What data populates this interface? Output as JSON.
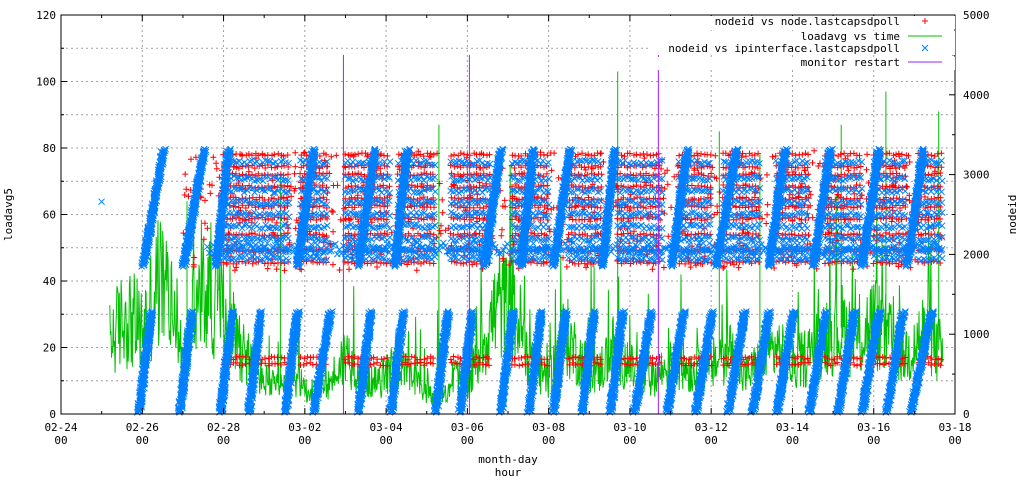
{
  "chart_data": {
    "type": "scatter",
    "title": "",
    "xlabel_lines": [
      "month-day",
      "hour"
    ],
    "ylabel": "loadavg5",
    "y2label": "nodeid",
    "ylim": [
      0,
      120
    ],
    "y2lim": [
      0,
      5000
    ],
    "x_ticks": [
      {
        "day": 0,
        "line1": "02-24",
        "line2": "00"
      },
      {
        "day": 2,
        "line1": "02-26",
        "line2": "00"
      },
      {
        "day": 4,
        "line1": "02-28",
        "line2": "00"
      },
      {
        "day": 6,
        "line1": "03-02",
        "line2": "00"
      },
      {
        "day": 8,
        "line1": "03-04",
        "line2": "00"
      },
      {
        "day": 10,
        "line1": "03-06",
        "line2": "00"
      },
      {
        "day": 12,
        "line1": "03-08",
        "line2": "00"
      },
      {
        "day": 14,
        "line1": "03-10",
        "line2": "00"
      },
      {
        "day": 16,
        "line1": "03-12",
        "line2": "00"
      },
      {
        "day": 18,
        "line1": "03-14",
        "line2": "00"
      },
      {
        "day": 20,
        "line1": "03-16",
        "line2": "00"
      },
      {
        "day": 22,
        "line1": "03-18",
        "line2": "00"
      }
    ],
    "y_ticks": [
      0,
      20,
      40,
      60,
      80,
      100,
      120
    ],
    "y2_ticks": [
      0,
      1000,
      2000,
      3000,
      4000,
      5000
    ],
    "grid": true,
    "legend_position": "top-right",
    "series": [
      {
        "name": "nodeid vs node.lastcapsdpoll",
        "axis": "y2",
        "marker": "+",
        "color": "#ff0000",
        "rows": [
          625,
          700,
          1900,
          2050,
          2250,
          2450,
          2600,
          2700,
          2850,
          3000,
          3100,
          3250
        ],
        "columns": [
          [
            4.0,
            5.6
          ],
          [
            5.9,
            6.6
          ],
          [
            7.0,
            8.1
          ],
          [
            8.3,
            9.2
          ],
          [
            9.6,
            10.6
          ],
          [
            11.1,
            12.0
          ],
          [
            12.5,
            13.3
          ],
          [
            13.7,
            14.8
          ],
          [
            15.2,
            16.0
          ],
          [
            16.3,
            17.2
          ],
          [
            17.6,
            18.4
          ],
          [
            18.8,
            19.7
          ],
          [
            20.0,
            20.8
          ],
          [
            21.1,
            21.7
          ]
        ]
      },
      {
        "name": "loadavg vs time",
        "axis": "y",
        "line": true,
        "color": "#00c000",
        "x_range": [
          1.2,
          21.7
        ],
        "profile": [
          [
            1.2,
            22
          ],
          [
            1.6,
            30
          ],
          [
            2.0,
            25
          ],
          [
            2.4,
            40
          ],
          [
            2.7,
            35
          ],
          [
            3.0,
            15
          ],
          [
            3.3,
            32
          ],
          [
            3.7,
            38
          ],
          [
            4.0,
            30
          ],
          [
            4.4,
            22
          ],
          [
            4.8,
            12
          ],
          [
            5.3,
            8
          ],
          [
            5.8,
            10
          ],
          [
            6.2,
            6
          ],
          [
            6.6,
            9
          ],
          [
            7.0,
            18
          ],
          [
            7.4,
            12
          ],
          [
            7.8,
            9
          ],
          [
            8.2,
            15
          ],
          [
            8.6,
            11
          ],
          [
            9.0,
            6
          ],
          [
            9.4,
            5
          ],
          [
            9.7,
            12
          ],
          [
            10.0,
            8
          ],
          [
            10.4,
            22
          ],
          [
            10.8,
            34
          ],
          [
            11.2,
            30
          ],
          [
            11.6,
            14
          ],
          [
            12.0,
            10
          ],
          [
            12.4,
            24
          ],
          [
            12.8,
            16
          ],
          [
            13.2,
            12
          ],
          [
            13.6,
            20
          ],
          [
            14.0,
            14
          ],
          [
            14.4,
            10
          ],
          [
            14.8,
            13
          ],
          [
            15.2,
            16
          ],
          [
            15.6,
            12
          ],
          [
            16.0,
            14
          ],
          [
            16.4,
            20
          ],
          [
            16.8,
            11
          ],
          [
            17.2,
            15
          ],
          [
            17.6,
            20
          ],
          [
            18.0,
            14
          ],
          [
            18.4,
            18
          ],
          [
            18.8,
            24
          ],
          [
            19.2,
            26
          ],
          [
            19.6,
            22
          ],
          [
            20.0,
            28
          ],
          [
            20.4,
            22
          ],
          [
            20.8,
            18
          ],
          [
            21.2,
            24
          ],
          [
            21.7,
            18
          ]
        ],
        "peaks": [
          [
            3.1,
            64
          ],
          [
            5.4,
            71
          ],
          [
            9.3,
            87
          ],
          [
            11.1,
            68
          ],
          [
            13.7,
            103
          ],
          [
            16.2,
            85
          ],
          [
            17.2,
            78
          ],
          [
            19.2,
            87
          ],
          [
            20.3,
            97
          ],
          [
            21.6,
            91
          ]
        ]
      },
      {
        "name": "nodeid vs ipinterface.lastcapsdpoll",
        "axis": "y2",
        "marker": "x",
        "color": "#0080ff",
        "outlier": [
          1.0,
          2660
        ],
        "rows": [
          1950,
          2050,
          2200,
          2350,
          2500,
          2650,
          2800,
          2950,
          3150
        ],
        "columns": [
          [
            4.0,
            5.6
          ],
          [
            5.9,
            6.6
          ],
          [
            7.0,
            8.1
          ],
          [
            8.3,
            9.2
          ],
          [
            9.6,
            10.6
          ],
          [
            11.1,
            12.0
          ],
          [
            12.5,
            13.3
          ],
          [
            13.7,
            14.8
          ],
          [
            15.2,
            16.0
          ],
          [
            16.3,
            17.2
          ],
          [
            17.6,
            18.4
          ],
          [
            18.8,
            19.7
          ],
          [
            20.0,
            20.8
          ],
          [
            21.1,
            21.7
          ]
        ],
        "ramps_upper": [
          [
            2.0,
            2.5
          ],
          [
            3.0,
            3.5
          ],
          [
            3.8,
            4.1
          ],
          [
            5.8,
            6.2
          ],
          [
            7.3,
            7.7
          ],
          [
            8.2,
            8.5
          ],
          [
            10.4,
            10.8
          ],
          [
            11.3,
            11.6
          ],
          [
            12.1,
            12.5
          ],
          [
            13.3,
            13.6
          ],
          [
            15.0,
            15.4
          ],
          [
            16.1,
            16.6
          ],
          [
            17.4,
            17.8
          ],
          [
            18.5,
            18.9
          ],
          [
            19.7,
            20.1
          ],
          [
            20.8,
            21.2
          ]
        ],
        "ramps_lower": [
          [
            1.9,
            2.2
          ],
          [
            2.9,
            3.2
          ],
          [
            3.9,
            4.2
          ],
          [
            4.6,
            4.9
          ],
          [
            5.5,
            5.8
          ],
          [
            6.2,
            6.6
          ],
          [
            7.3,
            7.6
          ],
          [
            8.1,
            8.4
          ],
          [
            9.2,
            9.5
          ],
          [
            9.8,
            10.1
          ],
          [
            10.8,
            11.1
          ],
          [
            11.5,
            11.8
          ],
          [
            12.1,
            12.4
          ],
          [
            12.8,
            13.1
          ],
          [
            13.5,
            13.8
          ],
          [
            14.1,
            14.5
          ],
          [
            14.9,
            15.3
          ],
          [
            15.6,
            16.0
          ],
          [
            16.4,
            16.8
          ],
          [
            17.0,
            17.4
          ],
          [
            17.6,
            18.0
          ],
          [
            18.4,
            18.8
          ],
          [
            19.1,
            19.5
          ],
          [
            19.7,
            20.1
          ],
          [
            20.3,
            20.7
          ],
          [
            20.9,
            21.4
          ]
        ]
      },
      {
        "name": "monitor restart",
        "axis": "y",
        "impulse": true,
        "color": "#a020f0",
        "x": [
          6.95,
          10.05,
          14.7
        ],
        "y": [
          108,
          108,
          108
        ]
      }
    ]
  }
}
